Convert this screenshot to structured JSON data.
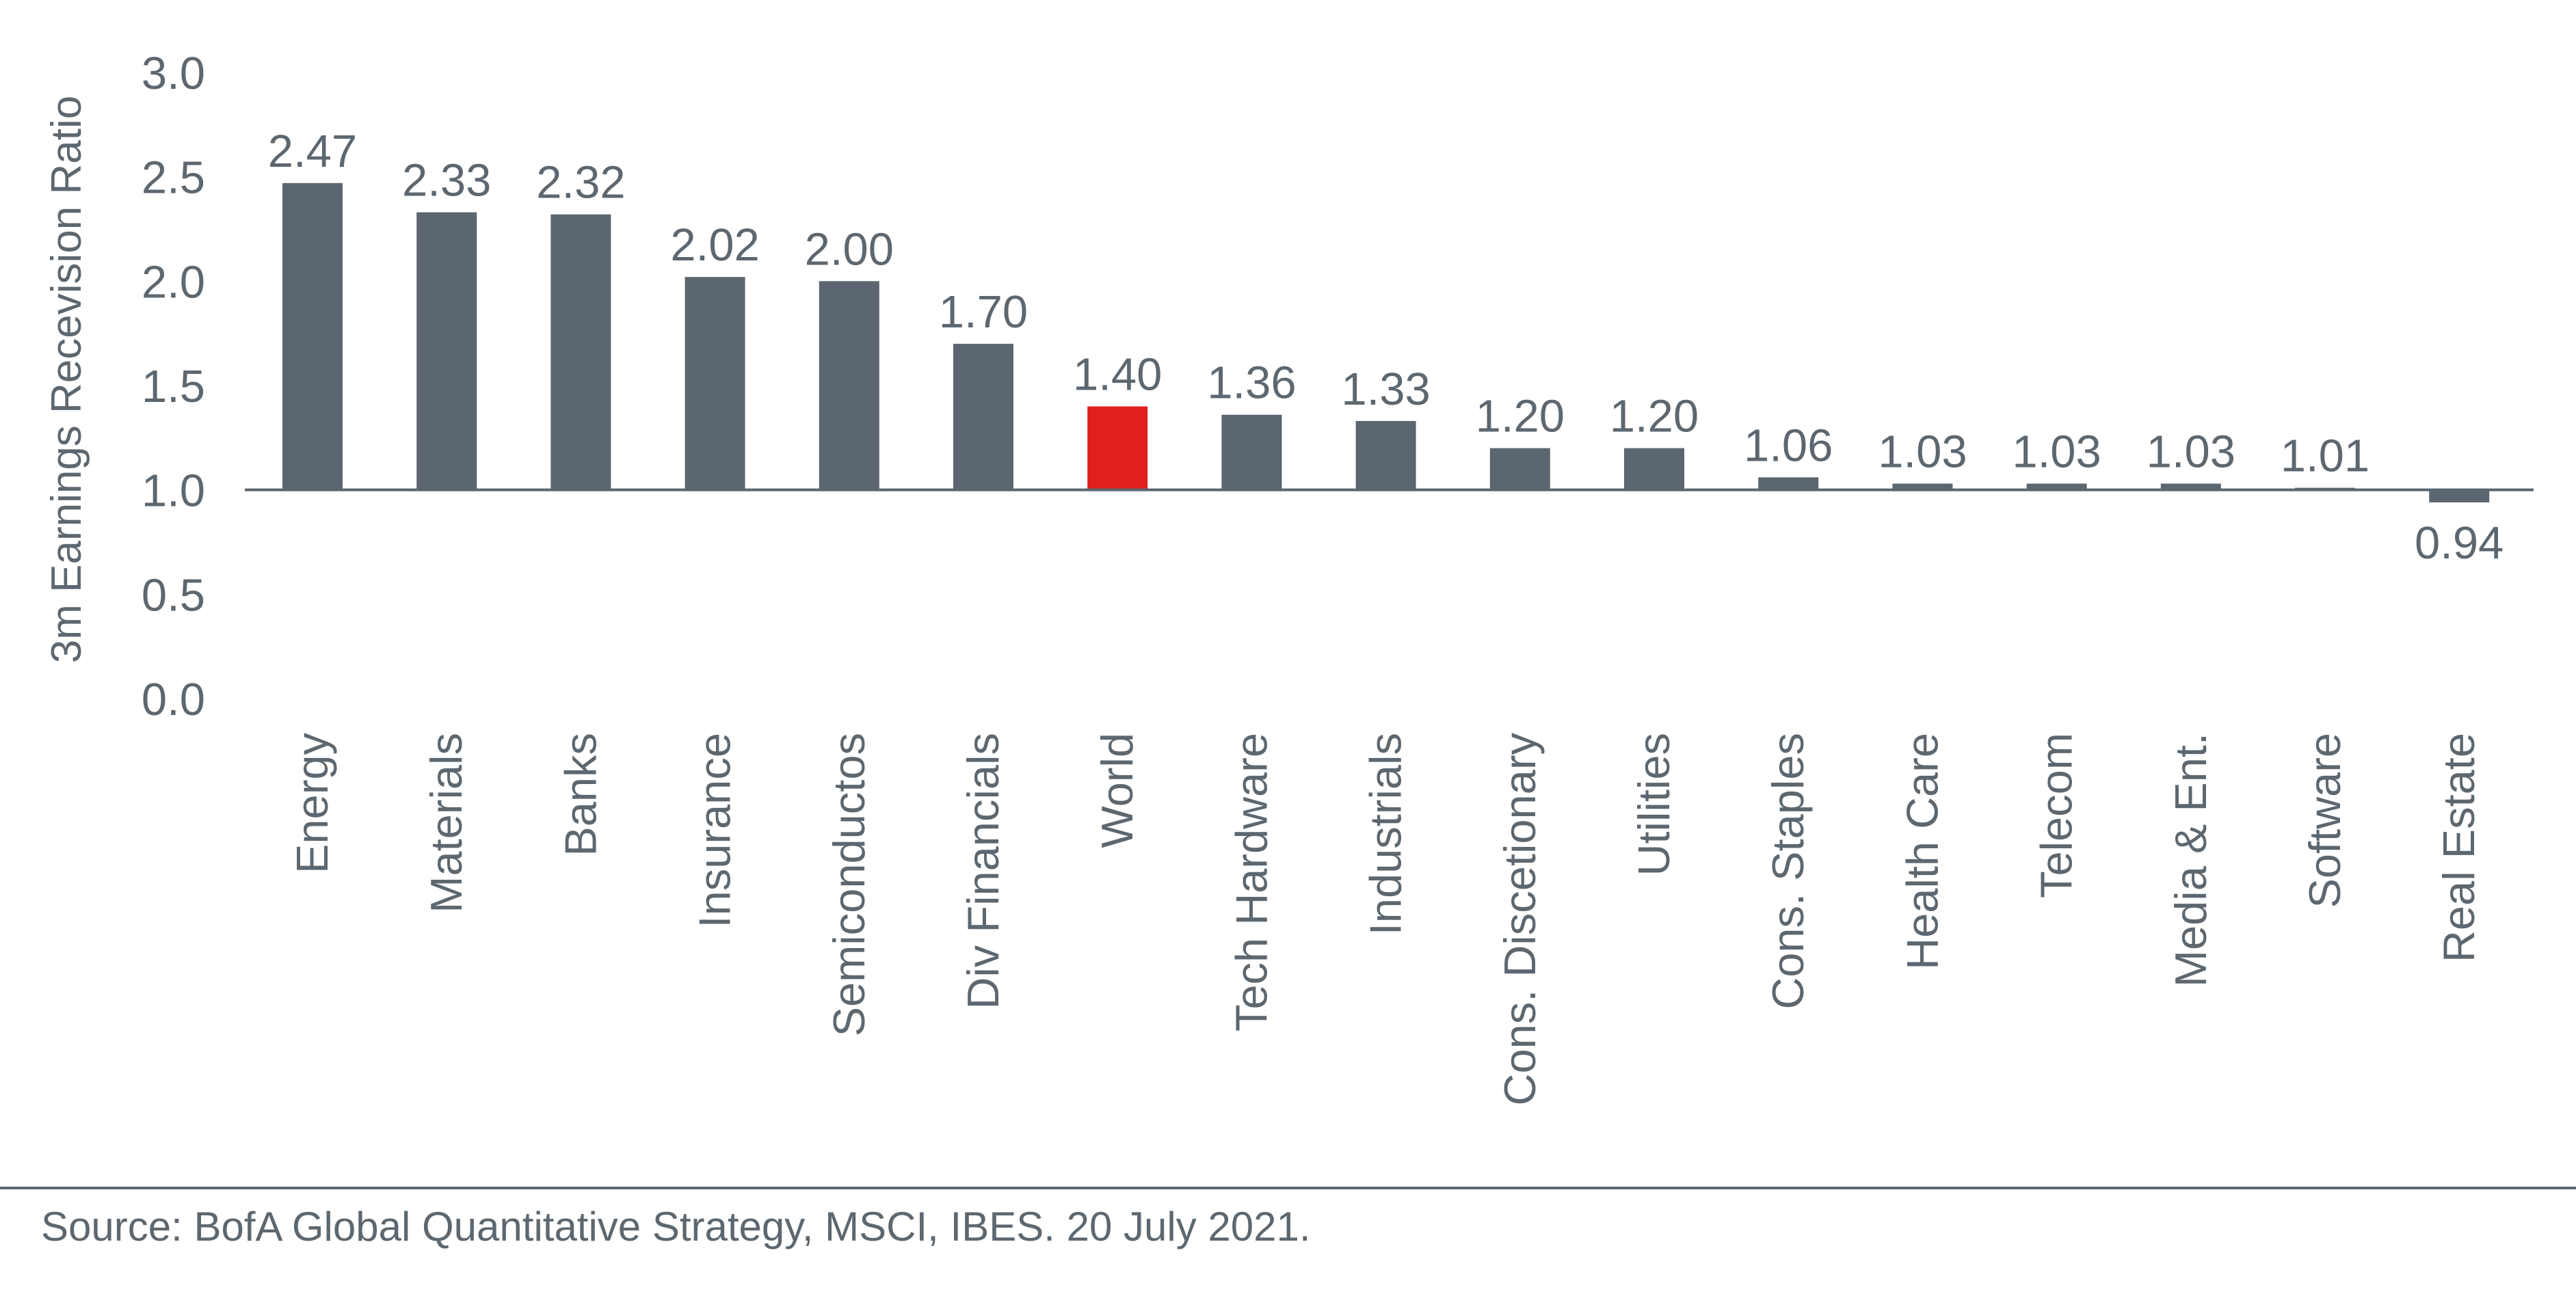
{
  "chart_data": {
    "type": "bar",
    "ylabel": "3m Earnings Recevision Ratio",
    "ylim": [
      0.0,
      3.0
    ],
    "yticks": [
      "0.0",
      "0.5",
      "1.0",
      "1.5",
      "2.0",
      "2.5",
      "3.0"
    ],
    "baseline": 1.0,
    "categories": [
      "Energy",
      "Materials",
      "Banks",
      "Insurance",
      "Semiconductos",
      "Div Financials",
      "World",
      "Tech Hardware",
      "Industrials",
      "Cons. Discetionary",
      "Utilities",
      "Cons. Staples",
      "Health Care",
      "Telecom",
      "Media & Ent.",
      "Software",
      "Real Estate"
    ],
    "values": [
      2.47,
      2.33,
      2.32,
      2.02,
      2.0,
      1.7,
      1.4,
      1.36,
      1.33,
      1.2,
      1.2,
      1.06,
      1.03,
      1.03,
      1.03,
      1.01,
      0.94
    ],
    "value_labels": [
      "2.47",
      "2.33",
      "2.32",
      "2.02",
      "2.00",
      "1.70",
      "1.40",
      "1.36",
      "1.33",
      "1.20",
      "1.20",
      "1.06",
      "1.03",
      "1.03",
      "1.03",
      "1.01",
      "0.94"
    ],
    "highlight_category": "World",
    "colors": {
      "bar": "#5b6670",
      "highlight": "#e0201e",
      "text": "#5d6770",
      "axis": "#5b6670"
    },
    "grid": false,
    "legend": "none"
  },
  "footer": {
    "source": "Source: BofA Global Quantitative Strategy, MSCI, IBES. 20 July 2021."
  }
}
